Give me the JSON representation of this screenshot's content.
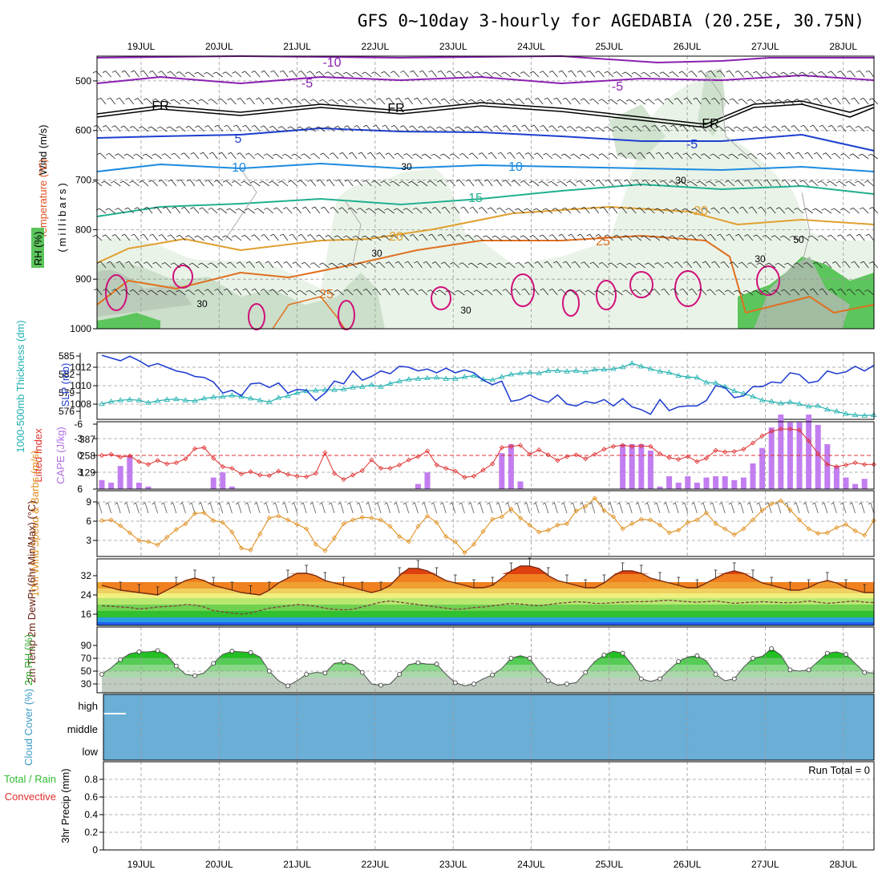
{
  "title": "GFS 0~10day 3-hourly for AGEDABIA (20.25E, 30.75N)",
  "dates": [
    "19JUL",
    "20JUL",
    "21JUL",
    "22JUL",
    "23JUL",
    "24JUL",
    "25JUL",
    "26JUL",
    "27JUL",
    "28JUL"
  ],
  "run_total": "Run Total = 0",
  "colors": {
    "temp_purple": "#8b20b0",
    "freeze": "#000000",
    "blue5": "#1c3fd0",
    "blue10": "#1c8be0",
    "teal15": "#20b090",
    "orange20": "#e0a030",
    "orange25": "#e07020",
    "magenta": "#d0107a",
    "slp": "#1c3ad0",
    "thick": "#20b0b0",
    "cape": "#c27ef0",
    "li": "#e03030",
    "wind": "#e09020",
    "cloud": "#6baed6",
    "rh_green": "#33bb33"
  },
  "chart_data": [
    {
      "type": "contour",
      "panel": "upper-air",
      "ylabel_parts": [
        "Wind (m/s)",
        "Temperature (°C)",
        "RH (%)"
      ],
      "yunit": "(millibars)",
      "yticks": [
        "500",
        "600",
        "700",
        "800",
        "900",
        "1000"
      ],
      "ylim": [
        450,
        1000
      ],
      "contour_labels": [
        "-10",
        "-5",
        "-5",
        "FR",
        "FR",
        "FR",
        "5",
        "-5",
        "10",
        "10",
        "15",
        "20",
        "20",
        "25",
        "25",
        "30",
        "30",
        "30",
        "30",
        "50",
        "30",
        "30"
      ]
    },
    {
      "type": "line",
      "panel": "slp-thickness",
      "ylabel_left": "1000-500mb Thickness (dm)",
      "ylabel_right": "SLP (mb)",
      "left_ticks": [
        "585",
        "582",
        "579",
        "576"
      ],
      "right_ticks": [
        "1012",
        "1010",
        "1008"
      ],
      "series": [
        {
          "name": "SLP (mb)",
          "values": [
            1013.3,
            1013,
            1012.7,
            1013.2,
            1012.7,
            1012.1,
            1012.4,
            1012,
            1011.6,
            1011.4,
            1011,
            1010.9,
            1010.4,
            1009.2,
            1009.5,
            1008.9,
            1010.2,
            1010.3,
            1009.8,
            1010.3,
            1009.2,
            1009.6,
            1009.5,
            1008.4,
            1009.2,
            1010.5,
            1010.2,
            1011.6,
            1010.6,
            1011,
            1011.6,
            1011.3,
            1012.1,
            1012,
            1011.6,
            1011.8,
            1011.4,
            1011.9,
            1011.4,
            1011.7,
            1011.4,
            1010.6,
            1010.1,
            1010.5,
            1008.3,
            1008.5,
            1009,
            1008.5,
            1008.2,
            1009,
            1008,
            1007.8,
            1008.3,
            1008.1,
            1008.5,
            1007.8,
            1008.6,
            1007.7,
            1007.4,
            1006.9,
            1008.5,
            1007.3,
            1007.7,
            1007.8,
            1007.8,
            1008.4,
            1010,
            1009.8,
            1008.7,
            1008.9,
            1009.9,
            1009.9,
            1010.4,
            1010.3,
            1011.4,
            1011.2,
            1010.3,
            1010.5,
            1011.6,
            1011.3,
            1011.5,
            1012.1,
            1011.6,
            1012.2
          ]
        },
        {
          "name": "1000-500mb Thickness (dm)",
          "values": [
            577.2,
            577.6,
            577.8,
            577.9,
            577.8,
            577.4,
            577.7,
            577.9,
            578,
            577.8,
            577.7,
            578.1,
            578.3,
            578.4,
            578.6,
            578.4,
            578.1,
            577.8,
            577.5,
            578.2,
            578.5,
            579,
            579.3,
            579.4,
            579.5,
            579.5,
            579.6,
            579.9,
            580,
            580.3,
            580,
            580.5,
            580.9,
            581.2,
            581.3,
            581.4,
            581.5,
            581.3,
            581.3,
            581.6,
            581.8,
            581.2,
            581.1,
            581.6,
            582,
            582.2,
            582.3,
            582.2,
            582.6,
            582.6,
            582.5,
            582.6,
            582.4,
            582.8,
            582.8,
            582.9,
            583.2,
            583.8,
            583.3,
            582.9,
            582.5,
            582.3,
            581.8,
            581.6,
            581.5,
            580.7,
            580.6,
            580,
            579.3,
            578.9,
            578.4,
            577.8,
            577.6,
            577.3,
            577.5,
            577.2,
            576.8,
            576.9,
            576.3,
            576,
            575.6,
            575.4,
            575.3,
            575.4
          ]
        }
      ]
    },
    {
      "type": "bar",
      "panel": "cape-li",
      "ylabel_left": "Lifted Index",
      "ylabel_right": "CAPE (J/kg)",
      "li_ticks": [
        "-3",
        "0",
        "3",
        "6",
        "-6"
      ],
      "cape_ticks": [
        "387",
        "258",
        "129"
      ],
      "series": [
        {
          "name": "CAPE (J/kg)",
          "values": [
            70,
            50,
            180,
            260,
            50,
            20,
            0,
            0,
            0,
            0,
            0,
            0,
            90,
            130,
            20,
            0,
            0,
            0,
            0,
            0,
            0,
            0,
            0,
            0,
            0,
            0,
            0,
            0,
            0,
            0,
            0,
            0,
            0,
            0,
            40,
            130,
            0,
            0,
            0,
            0,
            0,
            0,
            0,
            280,
            350,
            60,
            0,
            0,
            0,
            0,
            0,
            0,
            0,
            0,
            0,
            0,
            350,
            350,
            350,
            300,
            20,
            100,
            50,
            100,
            50,
            90,
            100,
            100,
            70,
            90,
            200,
            320,
            480,
            580,
            520,
            520,
            580,
            500,
            350,
            180,
            90,
            40,
            80,
            0
          ]
        },
        {
          "name": "Lifted Index",
          "values": [
            0,
            -0.2,
            0.3,
            0.1,
            1.1,
            1.6,
            0.9,
            1.5,
            1.3,
            0.6,
            -1.2,
            -1.4,
            0.5,
            2,
            2.3,
            3.3,
            2.9,
            3.5,
            3.6,
            2.8,
            3.4,
            3.7,
            3.8,
            3.2,
            -0.5,
            3.2,
            4.3,
            3.5,
            2.7,
            0.8,
            2.3,
            2.3,
            1.7,
            0.8,
            0.2,
            -0.8,
            1.7,
            2.3,
            2.8,
            3.9,
            3.7,
            2.6,
            1.5,
            -1.4,
            -1.6,
            -1.8,
            -0.2,
            -1,
            -0.1,
            0.9,
            0.2,
            -0.1,
            0.6,
            -0.2,
            -1.1,
            -1.6,
            -1.8,
            -1.6,
            -1.7,
            -1.6,
            -0.3,
            0.4,
            0.7,
            0.2,
            1.1,
            0.5,
            -0.9,
            -0.6,
            -0.7,
            -1.1,
            -2.2,
            -3.5,
            -4.3,
            -4.7,
            -4.7,
            -4.5,
            -2.6,
            -0.3,
            1.6,
            2,
            1.7,
            1.3,
            1.6,
            1.6
          ]
        }
      ]
    },
    {
      "type": "line",
      "panel": "10m-wind",
      "ylabel": "10m Wind Speed & Barbs (m/s)",
      "yticks": [
        "9",
        "6",
        "3"
      ],
      "series": [
        {
          "name": "10m Wind Speed",
          "values": [
            6.1,
            6.2,
            5.3,
            4.2,
            3,
            2.8,
            2.3,
            3.5,
            4.7,
            5.6,
            7.2,
            7.3,
            6.1,
            5.8,
            4.3,
            1.8,
            1.5,
            4,
            6.5,
            6.8,
            6.2,
            5.5,
            4.8,
            2.4,
            1.4,
            3.4,
            5.6,
            6.2,
            6.6,
            6.5,
            6.2,
            5.2,
            3.6,
            2.8,
            5.2,
            6.8,
            5.8,
            3.6,
            2.8,
            1.1,
            2.4,
            4.4,
            6.3,
            6.7,
            7.9,
            6.5,
            5.4,
            4.3,
            4.6,
            5.4,
            5.6,
            7.6,
            8.3,
            9.6,
            7.7,
            6.7,
            4.8,
            5.6,
            6.3,
            6.2,
            5.4,
            4.2,
            4.6,
            5.8,
            6.2,
            7.3,
            5.6,
            4.8,
            3.9,
            4.8,
            6.2,
            7.7,
            8.7,
            9.2,
            7.8,
            6.2,
            4.8,
            4.1,
            4.2,
            5,
            5.5,
            4.5,
            3.8,
            6.1
          ]
        }
      ]
    },
    {
      "type": "area",
      "panel": "2m-temp",
      "ylabel": "2m Temp 2m DewPt (6hr Min/Max) (°C)",
      "yticks": [
        "32",
        "24",
        "16"
      ],
      "series": [
        {
          "name": "2m Temp",
          "values": [
            28,
            27,
            26,
            25.5,
            25,
            24.5,
            24,
            26,
            28,
            30,
            31,
            30,
            28,
            27,
            26,
            25,
            24.5,
            24,
            26,
            29,
            31,
            33,
            33,
            32,
            30,
            29,
            28,
            27,
            26,
            25,
            26,
            28,
            32,
            35,
            35,
            34,
            32,
            30,
            29,
            28,
            27,
            27,
            28,
            31,
            34,
            36,
            36,
            35,
            32,
            30,
            29,
            28,
            27,
            27,
            29,
            32,
            34,
            34,
            33,
            31,
            30,
            29,
            28,
            27,
            27,
            29,
            31,
            33,
            34,
            33,
            31,
            29,
            28,
            27,
            26,
            26,
            27,
            29,
            30,
            29,
            27,
            26,
            25,
            25
          ]
        },
        {
          "name": "2m DewPt",
          "values": [
            19.5,
            19.3,
            19,
            18.8,
            18.2,
            18.5,
            19,
            19.2,
            19.5,
            20,
            19.8,
            19,
            17.5,
            17,
            16.5,
            16,
            16.5,
            17.5,
            18.5,
            19,
            19.5,
            20,
            19.8,
            19.3,
            18.5,
            18,
            17.8,
            18,
            19,
            20,
            21,
            21.5,
            21,
            20.5,
            20,
            19.5,
            19,
            18.5,
            18,
            18.2,
            18.8,
            19,
            19.5,
            20,
            20.5,
            20.2,
            19.8,
            19.5,
            20,
            20.5,
            20.8,
            21.2,
            21,
            20.5,
            20.5,
            20.8,
            21,
            21.2,
            21.2,
            21.3,
            21.6,
            21.8,
            21.5,
            21.2,
            21,
            21.2,
            21.5,
            21,
            20.5,
            20.8,
            21,
            21.2,
            21,
            20.8,
            20.8,
            21,
            21.5,
            21,
            20.5,
            20.8,
            21.2,
            21.5,
            21,
            20.8
          ]
        }
      ]
    },
    {
      "type": "area",
      "panel": "2m-rh",
      "ylabel": "2m RH (%)",
      "yticks": [
        "90",
        "70",
        "50",
        "30"
      ],
      "series": [
        {
          "name": "2m RH",
          "values": [
            45,
            55,
            68,
            77,
            80,
            80,
            82,
            75,
            58,
            45,
            43,
            47,
            62,
            76,
            81,
            80,
            79,
            72,
            50,
            35,
            27,
            35,
            45,
            48,
            47,
            62,
            64,
            60,
            48,
            30,
            28,
            30,
            45,
            60,
            63,
            61,
            61,
            45,
            32,
            27,
            30,
            38,
            44,
            54,
            70,
            74,
            70,
            50,
            35,
            28,
            30,
            32,
            48,
            65,
            75,
            81,
            78,
            60,
            38,
            34,
            38,
            52,
            65,
            72,
            74,
            66,
            45,
            35,
            38,
            56,
            70,
            73,
            85,
            75,
            52,
            50,
            52,
            65,
            78,
            80,
            76,
            62,
            48,
            47
          ]
        }
      ]
    },
    {
      "type": "area",
      "panel": "cloud-cover",
      "ylabel": "Cloud Cover (%)",
      "levels": [
        "high",
        "middle",
        "low"
      ]
    },
    {
      "type": "bar",
      "panel": "precip",
      "ylabel": "3hr Precip (mm)",
      "legend": [
        "Total / Rain",
        "Convective"
      ],
      "yticks": [
        "0.8",
        "0.6",
        "0.4",
        "0.2",
        "0"
      ],
      "ylim": [
        0,
        1
      ],
      "run_total": "Run Total = 0"
    }
  ]
}
